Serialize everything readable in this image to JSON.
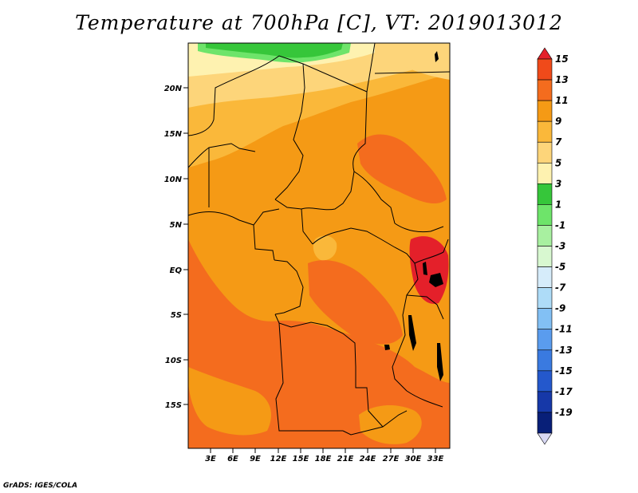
{
  "title": "Temperature at 700hPa [C], VT: 2019013012",
  "credit": "GrADS: IGES/COLA",
  "lat_ticks": [
    "20N",
    "15N",
    "10N",
    "5N",
    "EQ",
    "5S",
    "10S",
    "15S"
  ],
  "lon_ticks": [
    "3E",
    "6E",
    "9E",
    "12E",
    "15E",
    "18E",
    "21E",
    "24E",
    "27E",
    "30E",
    "33E"
  ],
  "colorbar": {
    "labels": [
      "15",
      "13",
      "11",
      "9",
      "7",
      "5",
      "3",
      "1",
      "-1",
      "-3",
      "-5",
      "-7",
      "-9",
      "-11",
      "-13",
      "-15",
      "-17",
      "-19"
    ],
    "colors": [
      "#e4202a",
      "#f04a1a",
      "#f46c1e",
      "#f59a15",
      "#fab83a",
      "#fdd57a",
      "#fef2b0",
      "#36c63a",
      "#6ee46a",
      "#a8f0a0",
      "#d8f8d0",
      "#d6ecfa",
      "#aedcf8",
      "#82c0f4",
      "#5a9cee",
      "#3a7ae0",
      "#2458cc",
      "#1638a8",
      "#081f78",
      "#d8d8f4"
    ]
  },
  "map": {
    "colors": {
      "green_dark": "#36c63a",
      "green_light": "#6ee46a",
      "pale_yellow": "#fef2b0",
      "light_yellow": "#fdd57a",
      "light_orange": "#fab83a",
      "orange": "#f59a15",
      "dark_orange": "#f46c1e",
      "red": "#e4202a",
      "lake": "#000000",
      "border": "#000000"
    }
  }
}
